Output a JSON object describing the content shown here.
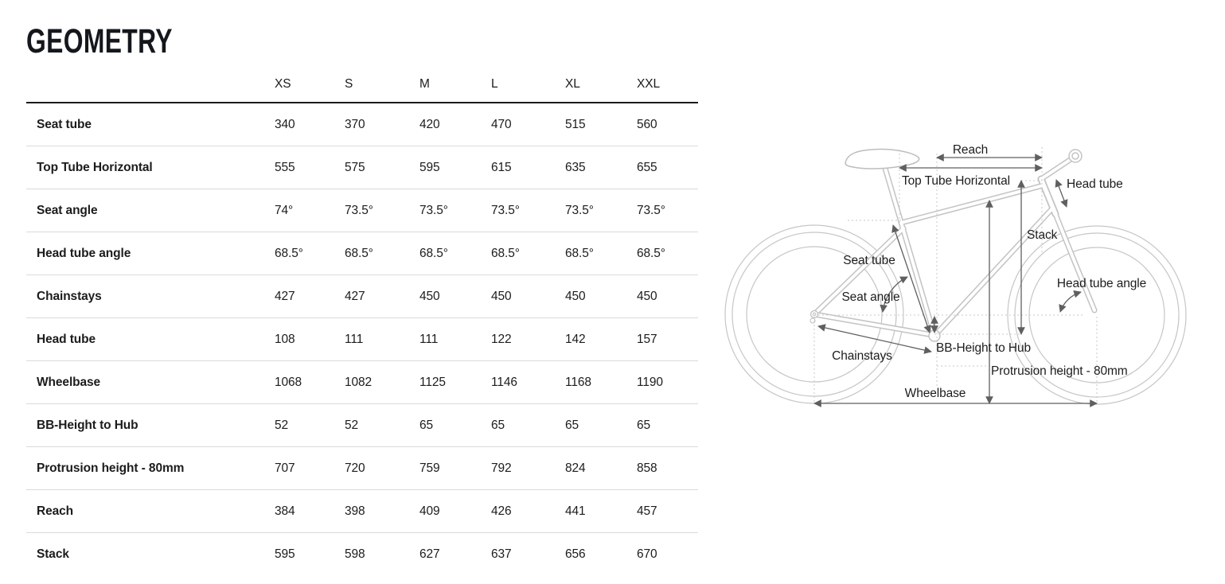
{
  "title": "GEOMETRY",
  "table": {
    "columns": [
      "XS",
      "S",
      "M",
      "L",
      "XL",
      "XXL"
    ],
    "rows": [
      {
        "label": "Seat tube",
        "values": [
          "340",
          "370",
          "420",
          "470",
          "515",
          "560"
        ]
      },
      {
        "label": "Top Tube Horizontal",
        "values": [
          "555",
          "575",
          "595",
          "615",
          "635",
          "655"
        ]
      },
      {
        "label": "Seat angle",
        "values": [
          "74°",
          "73.5°",
          "73.5°",
          "73.5°",
          "73.5°",
          "73.5°"
        ]
      },
      {
        "label": "Head tube angle",
        "values": [
          "68.5°",
          "68.5°",
          "68.5°",
          "68.5°",
          "68.5°",
          "68.5°"
        ]
      },
      {
        "label": "Chainstays",
        "values": [
          "427",
          "427",
          "450",
          "450",
          "450",
          "450"
        ]
      },
      {
        "label": "Head tube",
        "values": [
          "108",
          "111",
          "111",
          "122",
          "142",
          "157"
        ]
      },
      {
        "label": "Wheelbase",
        "values": [
          "1068",
          "1082",
          "1125",
          "1146",
          "1168",
          "1190"
        ]
      },
      {
        "label": "BB-Height to Hub",
        "values": [
          "52",
          "52",
          "65",
          "65",
          "65",
          "65"
        ]
      },
      {
        "label": "Protrusion height - 80mm",
        "values": [
          "707",
          "720",
          "759",
          "792",
          "824",
          "858"
        ]
      },
      {
        "label": "Reach",
        "values": [
          "384",
          "398",
          "409",
          "426",
          "441",
          "457"
        ]
      },
      {
        "label": "Stack",
        "values": [
          "595",
          "598",
          "627",
          "637",
          "656",
          "670"
        ]
      }
    ]
  },
  "diagram": {
    "labels": {
      "reach": "Reach",
      "top_tube_horizontal": "Top Tube Horizontal",
      "head_tube": "Head tube",
      "stack": "Stack",
      "seat_tube": "Seat tube",
      "seat_angle": "Seat angle",
      "head_tube_angle": "Head tube angle",
      "chainstays": "Chainstays",
      "bb_height_to_hub": "BB-Height to Hub",
      "protrusion_height": "Protrusion height - 80mm",
      "wheelbase": "Wheelbase"
    }
  },
  "colors": {
    "text": "#1c1c1c",
    "header_rule": "#1a1a1a",
    "row_separator": "#dadada",
    "bike_art": "#c3c3c3",
    "dimension_arrow": "#5f5f5f",
    "dotted_guide": "#c9c9c9"
  }
}
